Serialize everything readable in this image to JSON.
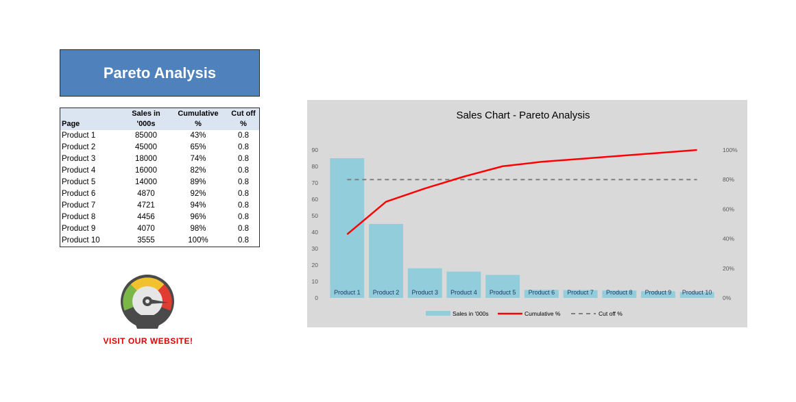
{
  "header": {
    "title": "Pareto Analysis"
  },
  "table": {
    "headers": [
      {
        "line1": "",
        "line2": "Page"
      },
      {
        "line1": "Sales in",
        "line2": "'000s"
      },
      {
        "line1": "Cumulative",
        "line2": "%"
      },
      {
        "line1": "",
        "line2": "Cut off %"
      }
    ],
    "rows": [
      {
        "page": "Product 1",
        "sales": "85000",
        "cum": "43%",
        "cutoff": "0.8"
      },
      {
        "page": "Product 2",
        "sales": "45000",
        "cum": "65%",
        "cutoff": "0.8"
      },
      {
        "page": "Product 3",
        "sales": "18000",
        "cum": "74%",
        "cutoff": "0.8"
      },
      {
        "page": "Product 4",
        "sales": "16000",
        "cum": "82%",
        "cutoff": "0.8"
      },
      {
        "page": "Product 5",
        "sales": "14000",
        "cum": "89%",
        "cutoff": "0.8"
      },
      {
        "page": "Product 6",
        "sales": "4870",
        "cum": "92%",
        "cutoff": "0.8"
      },
      {
        "page": "Product 7",
        "sales": "4721",
        "cum": "94%",
        "cutoff": "0.8"
      },
      {
        "page": "Product 8",
        "sales": "4456",
        "cum": "96%",
        "cutoff": "0.8"
      },
      {
        "page": "Product 9",
        "sales": "4070",
        "cum": "98%",
        "cutoff": "0.8"
      },
      {
        "page": "Product 10",
        "sales": "3555",
        "cum": "100%",
        "cutoff": "0.8"
      }
    ]
  },
  "website": {
    "label": "VISIT  OUR  WEBSITE!",
    "icon": "speedometer-icon"
  },
  "chart_data": {
    "type": "bar",
    "title": "Sales Chart - Pareto Analysis",
    "categories": [
      "Product 1",
      "Product 2",
      "Product 3",
      "Product 4",
      "Product 5",
      "Product 6",
      "Product 7",
      "Product 8",
      "Product 9",
      "Product 10"
    ],
    "series": [
      {
        "name": "Sales in '000s",
        "kind": "bar",
        "axis": "left",
        "color": "#92cddc",
        "values": [
          85,
          45,
          18,
          16,
          14,
          4.87,
          4.721,
          4.456,
          4.07,
          3.555
        ]
      },
      {
        "name": "Cumulative %",
        "kind": "line",
        "axis": "right",
        "color": "#ff0000",
        "values": [
          43,
          65,
          74,
          82,
          89,
          92,
          94,
          96,
          98,
          100
        ]
      },
      {
        "name": "Cut off %",
        "kind": "dashed-line",
        "axis": "right",
        "color": "#7f7f7f",
        "values": [
          80,
          80,
          80,
          80,
          80,
          80,
          80,
          80,
          80,
          80
        ]
      }
    ],
    "legend_labels": [
      "Sales in '000s",
      "Cumulative %",
      "Cut off %"
    ],
    "y_left": {
      "min": 0,
      "max": 90,
      "ticks": [
        "0",
        "10",
        "20",
        "30",
        "40",
        "50",
        "60",
        "70",
        "80",
        "90"
      ]
    },
    "y_right": {
      "min": 0,
      "max": 100,
      "ticks": [
        "0%",
        "20%",
        "40%",
        "60%",
        "80%",
        "100%"
      ]
    },
    "legend_position": "bottom",
    "grid": false,
    "background": "#d9d9d9"
  }
}
